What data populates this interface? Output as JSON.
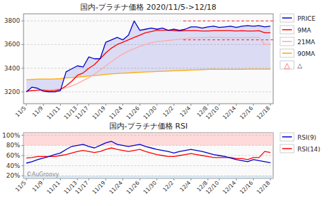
{
  "chart_data": [
    {
      "type": "line",
      "title": "国内-プラチナ価格 2020/11/5->12/18",
      "categories": [
        "11/5",
        null,
        null,
        "11/9",
        null,
        null,
        "11/11",
        null,
        null,
        "11/13",
        null,
        "11/17",
        null,
        null,
        "11/19",
        null,
        null,
        "11/24",
        null,
        null,
        "11/26",
        null,
        null,
        "11/30",
        null,
        null,
        "12/2",
        null,
        null,
        "12/4",
        null,
        null,
        "12/8",
        null,
        "12/10",
        null,
        null,
        "12/14",
        null,
        null,
        "12/16",
        null,
        null,
        "12/18"
      ],
      "series": [
        {
          "name": "PRICE",
          "color": "#0000cc",
          "values": [
            3200,
            3240,
            3230,
            3205,
            3200,
            3200,
            3210,
            3370,
            3395,
            3420,
            3410,
            3495,
            3480,
            3480,
            3620,
            3640,
            3660,
            3640,
            3680,
            3800,
            3720,
            3730,
            3740,
            3730,
            3740,
            3720,
            3730,
            3720,
            3730,
            3750,
            3750,
            3740,
            3750,
            3755,
            3745,
            3750,
            3755,
            3745,
            3755,
            3760,
            3755,
            3760,
            3750,
            3755
          ]
        },
        {
          "name": "9MA",
          "color": "#ff0000",
          "values": [
            3205,
            3210,
            3215,
            3215,
            3208,
            3210,
            3220,
            3250,
            3290,
            3340,
            3360,
            3400,
            3430,
            3480,
            3530,
            3570,
            3600,
            3620,
            3640,
            3660,
            3680,
            3700,
            3710,
            3720,
            3720,
            3720,
            3718,
            3715,
            3718,
            3718,
            3718,
            3715,
            3715,
            3718,
            3718,
            3718,
            3718,
            3715,
            3718,
            3715,
            3715,
            3718,
            3700,
            3700
          ]
        },
        {
          "name": "21MA",
          "color": "#ffaaaa",
          "values": [
            3210,
            3212,
            3213,
            3215,
            3218,
            3220,
            3225,
            3235,
            3250,
            3270,
            3295,
            3320,
            3350,
            3385,
            3420,
            3455,
            3490,
            3520,
            3545,
            3565,
            3585,
            3600,
            3615,
            3625,
            3630,
            3635,
            3640,
            3645,
            3650,
            3655,
            3657,
            3658,
            3660,
            3662,
            3660,
            3658,
            3658,
            3658,
            3658,
            3659,
            3660,
            3660,
            3600,
            3605
          ]
        },
        {
          "name": "90MA",
          "color": "#ffaa00",
          "values": [
            3302,
            3305,
            3308,
            3308,
            3308,
            3310,
            3312,
            3318,
            3320,
            3325,
            3328,
            3335,
            3338,
            3342,
            3348,
            3352,
            3355,
            3358,
            3360,
            3363,
            3365,
            3368,
            3370,
            3372,
            3374,
            3376,
            3378,
            3380,
            3382,
            3384,
            3386,
            3388,
            3390,
            3392,
            3390,
            3390,
            3390,
            3390,
            3390,
            3392,
            3392,
            3392,
            3392,
            3392
          ]
        }
      ],
      "hlines": [
        {
          "value": 3800,
          "color": "#ff0000",
          "line_style": "dashed"
        },
        {
          "value": 3640,
          "color": "#ff0000",
          "line_style": "dashed"
        }
      ],
      "annotations": [
        {
          "text": "△",
          "color": "#ff4444",
          "marker": "triangle"
        }
      ],
      "ylim": [
        3100,
        3860
      ],
      "yticks": [
        3200,
        3400,
        3600,
        3800
      ],
      "grid": true,
      "legend": "right"
    },
    {
      "type": "line",
      "title": "国内-プラチナ価格 RSI",
      "categories": [
        "11/5",
        null,
        null,
        "11/9",
        null,
        null,
        "11/11",
        null,
        null,
        "11/13",
        null,
        "11/17",
        null,
        null,
        "11/19",
        null,
        null,
        "11/24",
        null,
        null,
        "11/26",
        null,
        null,
        "11/30",
        null,
        null,
        "12/2",
        null,
        null,
        "12/4",
        null,
        null,
        "12/8",
        null,
        "12/10",
        null,
        null,
        "12/14",
        null,
        null,
        "12/16",
        null,
        null,
        "12/18"
      ],
      "series": [
        {
          "name": "RSI(9)",
          "color": "#0000cc",
          "values": [
            45,
            48,
            52,
            55,
            58,
            62,
            65,
            72,
            78,
            80,
            82,
            78,
            75,
            80,
            85,
            88,
            82,
            80,
            78,
            80,
            82,
            78,
            75,
            72,
            70,
            68,
            65,
            68,
            70,
            72,
            70,
            68,
            65,
            62,
            60,
            58,
            55,
            52,
            50,
            48,
            52,
            50,
            48,
            46
          ]
        },
        {
          "name": "RSI(14)",
          "color": "#ff0000",
          "values": [
            55,
            56,
            58,
            58,
            58,
            58,
            60,
            62,
            65,
            68,
            70,
            68,
            66,
            68,
            72,
            75,
            72,
            70,
            68,
            70,
            72,
            68,
            65,
            62,
            60,
            58,
            58,
            60,
            62,
            64,
            62,
            60,
            58,
            56,
            56,
            56,
            56,
            54,
            54,
            52,
            56,
            56,
            68,
            66
          ]
        }
      ],
      "bands": [
        {
          "from": 80,
          "to": 105,
          "color": "#ffcccc"
        },
        {
          "from": 15,
          "to": 20,
          "color": "#c8dff0"
        }
      ],
      "annotations": [
        {
          "text": "©AuGroovy"
        }
      ],
      "ylim": [
        15,
        105
      ],
      "yticks": [
        {
          "value": 20,
          "label": "20%"
        },
        {
          "value": 40,
          "label": "40%"
        },
        {
          "value": 60,
          "label": "60%"
        },
        {
          "value": 80,
          "label": "80%"
        },
        {
          "value": 100,
          "label": "100%"
        }
      ],
      "grid": true,
      "legend": "right"
    }
  ]
}
